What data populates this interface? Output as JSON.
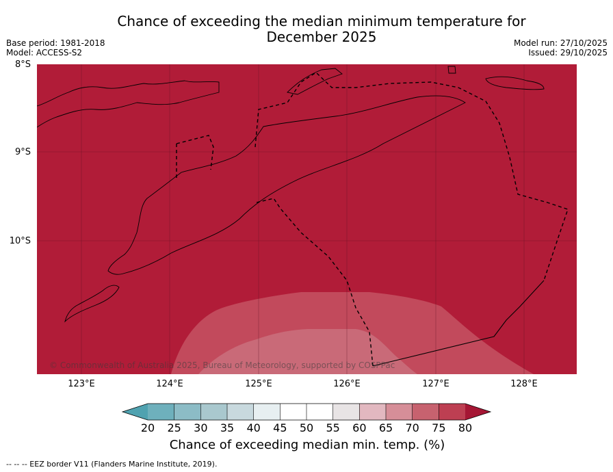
{
  "title": {
    "line1": "Chance of exceeding the median minimum temperature for",
    "line2": "December 2025"
  },
  "meta": {
    "base_period": "Base period: 1981-2018",
    "model": "Model: ACCESS-S2",
    "model_run": "Model run: 27/10/2025",
    "issued": "Issued: 29/10/2025"
  },
  "map": {
    "x_ticks": [
      "123°E",
      "124°E",
      "125°E",
      "126°E",
      "127°E",
      "128°E"
    ],
    "y_ticks": [
      "8°S",
      "9°S",
      "10°S"
    ],
    "background_color": "#b11c38",
    "band_colors": [
      "#c24a5c",
      "#c96a78"
    ],
    "copyright": "© Commonwealth of Australia 2025, Bureau of Meteorology, supported by COSPPac"
  },
  "colorbar": {
    "ticks": [
      "20",
      "25",
      "30",
      "35",
      "40",
      "45",
      "50",
      "55",
      "60",
      "65",
      "70",
      "75",
      "80"
    ],
    "colors": [
      "#4fa2b0",
      "#6eb0bc",
      "#8cbcc6",
      "#a9c8ce",
      "#c8d9de",
      "#e7eff1",
      "#ffffff",
      "#ffffff",
      "#e8e4e5",
      "#e2b8c0",
      "#d68e98",
      "#c7626f",
      "#bd3f52",
      "#a51634"
    ],
    "label": "Chance of exceeding median min. temp. (%)"
  },
  "footnote": "--  --  -- EEZ border V11 (Flanders Marine Institute, 2019)."
}
